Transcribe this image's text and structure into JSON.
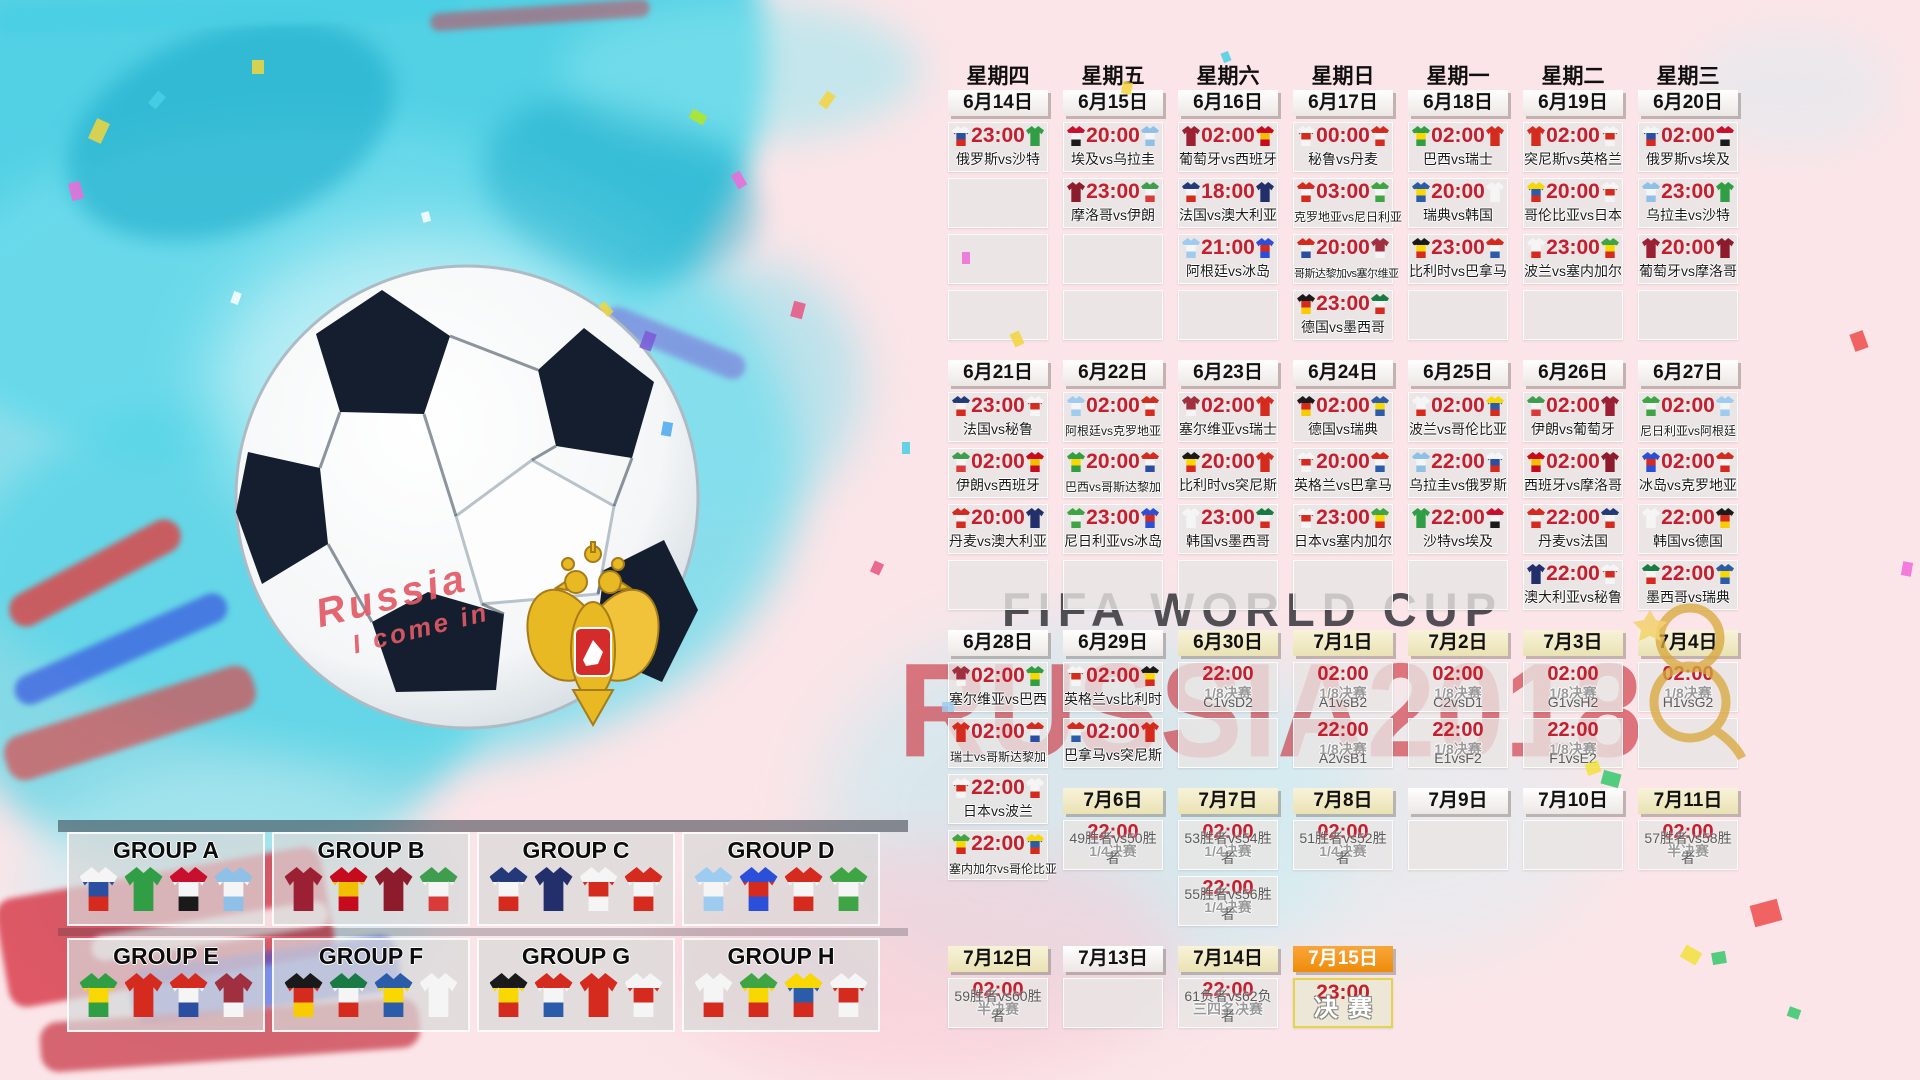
{
  "watermark": {
    "line1": "FIFA WORLD CUP",
    "line2": "RUSSIA2018"
  },
  "ball_graffiti": {
    "line1": "Russia",
    "line2": "I come in"
  },
  "colors": {
    "time_red": "#c21f2f",
    "date_highlight": "#efe6bd",
    "final_orange": "#f5920f",
    "final_cell_border": "#e3d44b",
    "background_pink": "#fbe5e8",
    "splash_cyan": "#49cfe4",
    "watermark_gray": "#34343a",
    "watermark_red": "#cb202c"
  },
  "team_colors": {
    "俄罗斯": [
      "#f5f5f5",
      "#2a4fa0",
      "#d52b1e"
    ],
    "沙特": [
      "#2f9e44",
      "#2f9e44",
      "#2f9e44"
    ],
    "埃及": [
      "#c8102e",
      "#f5f5f5",
      "#1a1a1a"
    ],
    "乌拉圭": [
      "#8fc1e8",
      "#f5f5f5",
      "#8fc1e8"
    ],
    "葡萄牙": [
      "#9c2033",
      "#9c2033",
      "#9c2033"
    ],
    "西班牙": [
      "#c60b1e",
      "#f1bf00",
      "#c60b1e"
    ],
    "摩洛哥": [
      "#8c1c2b",
      "#8c1c2b",
      "#8c1c2b"
    ],
    "伊朗": [
      "#3f9e4d",
      "#f5f5f5",
      "#d93a3a"
    ],
    "法国": [
      "#24397a",
      "#f5f5f5",
      "#d52b1e"
    ],
    "澳大利亚": [
      "#232f6b",
      "#232f6b",
      "#232f6b"
    ],
    "阿根廷": [
      "#9ecbf0",
      "#f5f5f5",
      "#9ecbf0"
    ],
    "冰岛": [
      "#2b4fd8",
      "#d52b1e",
      "#2b4fd8"
    ],
    "秘鲁": [
      "#f5f5f5",
      "#d52b1e",
      "#f5f5f5"
    ],
    "丹麦": [
      "#d52b1e",
      "#f5f5f5",
      "#d52b1e"
    ],
    "克罗地亚": [
      "#d52b1e",
      "#f5f5f5",
      "#d52b1e"
    ],
    "尼日利亚": [
      "#3fa544",
      "#f5f5f5",
      "#3fa544"
    ],
    "哥斯达黎加": [
      "#d52b1e",
      "#f5f5f5",
      "#2a4fa0"
    ],
    "塞尔维亚": [
      "#a03040",
      "#a03040",
      "#f5f5f5"
    ],
    "德国": [
      "#1a1a1a",
      "#d52b1e",
      "#f8cc00"
    ],
    "墨西哥": [
      "#1a7a44",
      "#f5f5f5",
      "#d52b1e"
    ],
    "巴西": [
      "#2f9e44",
      "#f8d800",
      "#2f9e44"
    ],
    "瑞士": [
      "#d52b1e",
      "#d52b1e",
      "#d52b1e"
    ],
    "瑞典": [
      "#2a5caa",
      "#f8d800",
      "#2a5caa"
    ],
    "韩国": [
      "#f5f5f5",
      "#f5f5f5",
      "#f5f5f5"
    ],
    "突尼斯": [
      "#d52b1e",
      "#d52b1e",
      "#d52b1e"
    ],
    "英格兰": [
      "#f5f5f5",
      "#d52b1e",
      "#f5f5f5"
    ],
    "哥伦比亚": [
      "#f8d800",
      "#2a5caa",
      "#d52b1e"
    ],
    "日本": [
      "#f5f5f5",
      "#d52b1e",
      "#f5f5f5"
    ],
    "波兰": [
      "#f5f5f5",
      "#f5f5f5",
      "#d52b1e"
    ],
    "塞内加尔": [
      "#3fa544",
      "#f8d800",
      "#d52b1e"
    ],
    "比利时": [
      "#1a1a1a",
      "#f8d800",
      "#d52b1e"
    ],
    "巴拿马": [
      "#d52b1e",
      "#f5f5f5",
      "#2a5caa"
    ]
  },
  "calendar": {
    "weekdays": [
      "星期四",
      "星期五",
      "星期六",
      "星期日",
      "星期一",
      "星期二",
      "星期三"
    ],
    "weeks": [
      {
        "columns": [
          [
            {
              "t": "date",
              "label": "6月14日",
              "style": "normal"
            },
            {
              "t": "match",
              "time": "23:00",
              "teams": "俄罗斯vs沙特"
            },
            {
              "t": "empty"
            },
            {
              "t": "empty"
            },
            {
              "t": "empty"
            }
          ],
          [
            {
              "t": "date",
              "label": "6月15日",
              "style": "normal"
            },
            {
              "t": "match",
              "time": "20:00",
              "teams": "埃及vs乌拉圭"
            },
            {
              "t": "match",
              "time": "23:00",
              "teams": "摩洛哥vs伊朗"
            },
            {
              "t": "empty"
            },
            {
              "t": "empty"
            }
          ],
          [
            {
              "t": "date",
              "label": "6月16日",
              "style": "normal"
            },
            {
              "t": "match",
              "time": "02:00",
              "teams": "葡萄牙vs西班牙"
            },
            {
              "t": "match",
              "time": "18:00",
              "teams": "法国vs澳大利亚"
            },
            {
              "t": "match",
              "time": "21:00",
              "teams": "阿根廷vs冰岛"
            },
            {
              "t": "empty"
            }
          ],
          [
            {
              "t": "date",
              "label": "6月17日",
              "style": "normal"
            },
            {
              "t": "match",
              "time": "00:00",
              "teams": "秘鲁vs丹麦"
            },
            {
              "t": "match",
              "time": "03:00",
              "teams": "克罗地亚vs尼日利亚"
            },
            {
              "t": "match",
              "time": "20:00",
              "teams": "哥斯达黎加vs塞尔维亚"
            },
            {
              "t": "match",
              "time": "23:00",
              "teams": "德国vs墨西哥"
            }
          ],
          [
            {
              "t": "date",
              "label": "6月18日",
              "style": "normal"
            },
            {
              "t": "match",
              "time": "02:00",
              "teams": "巴西vs瑞士"
            },
            {
              "t": "match",
              "time": "20:00",
              "teams": "瑞典vs韩国"
            },
            {
              "t": "match",
              "time": "23:00",
              "teams": "比利时vs巴拿马"
            },
            {
              "t": "empty"
            }
          ],
          [
            {
              "t": "date",
              "label": "6月19日",
              "style": "normal"
            },
            {
              "t": "match",
              "time": "02:00",
              "teams": "突尼斯vs英格兰"
            },
            {
              "t": "match",
              "time": "20:00",
              "teams": "哥伦比亚vs日本"
            },
            {
              "t": "match",
              "time": "23:00",
              "teams": "波兰vs塞内加尔"
            },
            {
              "t": "empty"
            }
          ],
          [
            {
              "t": "date",
              "label": "6月20日",
              "style": "normal"
            },
            {
              "t": "match",
              "time": "02:00",
              "teams": "俄罗斯vs埃及"
            },
            {
              "t": "match",
              "time": "23:00",
              "teams": "乌拉圭vs沙特"
            },
            {
              "t": "match",
              "time": "20:00",
              "teams": "葡萄牙vs摩洛哥"
            },
            {
              "t": "empty"
            }
          ]
        ]
      },
      {
        "columns": [
          [
            {
              "t": "date",
              "label": "6月21日",
              "style": "normal"
            },
            {
              "t": "match",
              "time": "23:00",
              "teams": "法国vs秘鲁"
            },
            {
              "t": "match",
              "time": "02:00",
              "teams": "伊朗vs西班牙"
            },
            {
              "t": "match",
              "time": "20:00",
              "teams": "丹麦vs澳大利亚"
            },
            {
              "t": "empty"
            }
          ],
          [
            {
              "t": "date",
              "label": "6月22日",
              "style": "normal"
            },
            {
              "t": "match",
              "time": "02:00",
              "teams": "阿根廷vs克罗地亚"
            },
            {
              "t": "match",
              "time": "20:00",
              "teams": "巴西vs哥斯达黎加"
            },
            {
              "t": "match",
              "time": "23:00",
              "teams": "尼日利亚vs冰岛"
            },
            {
              "t": "empty"
            }
          ],
          [
            {
              "t": "date",
              "label": "6月23日",
              "style": "normal"
            },
            {
              "t": "match",
              "time": "02:00",
              "teams": "塞尔维亚vs瑞士"
            },
            {
              "t": "match",
              "time": "20:00",
              "teams": "比利时vs突尼斯"
            },
            {
              "t": "match",
              "time": "23:00",
              "teams": "韩国vs墨西哥"
            },
            {
              "t": "empty"
            }
          ],
          [
            {
              "t": "date",
              "label": "6月24日",
              "style": "normal"
            },
            {
              "t": "match",
              "time": "02:00",
              "teams": "德国vs瑞典"
            },
            {
              "t": "match",
              "time": "20:00",
              "teams": "英格兰vs巴拿马"
            },
            {
              "t": "match",
              "time": "23:00",
              "teams": "日本vs塞内加尔"
            },
            {
              "t": "empty"
            }
          ],
          [
            {
              "t": "date",
              "label": "6月25日",
              "style": "normal"
            },
            {
              "t": "match",
              "time": "02:00",
              "teams": "波兰vs哥伦比亚"
            },
            {
              "t": "match",
              "time": "22:00",
              "teams": "乌拉圭vs俄罗斯"
            },
            {
              "t": "match",
              "time": "22:00",
              "teams": "沙特vs埃及"
            },
            {
              "t": "empty"
            }
          ],
          [
            {
              "t": "date",
              "label": "6月26日",
              "style": "normal"
            },
            {
              "t": "match",
              "time": "02:00",
              "teams": "伊朗vs葡萄牙"
            },
            {
              "t": "match",
              "time": "02:00",
              "teams": "西班牙vs摩洛哥"
            },
            {
              "t": "match",
              "time": "22:00",
              "teams": "丹麦vs法国"
            },
            {
              "t": "match",
              "time": "22:00",
              "teams": "澳大利亚vs秘鲁"
            }
          ],
          [
            {
              "t": "date",
              "label": "6月27日",
              "style": "normal"
            },
            {
              "t": "match",
              "time": "02:00",
              "teams": "尼日利亚vs阿根廷"
            },
            {
              "t": "match",
              "time": "02:00",
              "teams": "冰岛vs克罗地亚"
            },
            {
              "t": "match",
              "time": "22:00",
              "teams": "韩国vs德国"
            },
            {
              "t": "match",
              "time": "22:00",
              "teams": "墨西哥vs瑞典"
            }
          ]
        ]
      },
      {
        "columns": [
          [
            {
              "t": "date",
              "label": "6月28日",
              "style": "normal"
            },
            {
              "t": "match",
              "time": "02:00",
              "teams": "塞尔维亚vs巴西"
            },
            {
              "t": "match",
              "time": "02:00",
              "teams": "瑞士vs哥斯达黎加"
            },
            {
              "t": "match",
              "time": "22:00",
              "teams": "日本vs波兰"
            },
            {
              "t": "match",
              "time": "22:00",
              "teams": "塞内加尔vs哥伦比亚"
            }
          ],
          [
            {
              "t": "date",
              "label": "6月29日",
              "style": "normal"
            },
            {
              "t": "match",
              "time": "02:00",
              "teams": "英格兰vs比利时"
            },
            {
              "t": "match",
              "time": "02:00",
              "teams": "巴拿马vs突尼斯"
            }
          ],
          [
            {
              "t": "date",
              "label": "6月30日",
              "style": "hl"
            },
            {
              "t": "ko",
              "time": "22:00",
              "stage": "1/8决赛",
              "code": "C1vsD2"
            },
            {
              "t": "empty"
            }
          ],
          [
            {
              "t": "date",
              "label": "7月1日",
              "style": "hl"
            },
            {
              "t": "ko",
              "time": "02:00",
              "stage": "1/8决赛",
              "code": "A1vsB2"
            },
            {
              "t": "ko",
              "time": "22:00",
              "stage": "1/8决赛",
              "code": "A2vsB1"
            }
          ],
          [
            {
              "t": "date",
              "label": "7月2日",
              "style": "hl"
            },
            {
              "t": "ko",
              "time": "02:00",
              "stage": "1/8决赛",
              "code": "C2vsD1"
            },
            {
              "t": "ko",
              "time": "22:00",
              "stage": "1/8决赛",
              "code": "E1vsF2"
            }
          ],
          [
            {
              "t": "date",
              "label": "7月3日",
              "style": "hl"
            },
            {
              "t": "ko",
              "time": "02:00",
              "stage": "1/8决赛",
              "code": "G1vsH2"
            },
            {
              "t": "ko",
              "time": "22:00",
              "stage": "1/8决赛",
              "code": "F1vsE2"
            }
          ],
          [
            {
              "t": "date",
              "label": "7月4日",
              "style": "hl"
            },
            {
              "t": "ko",
              "time": "02:00",
              "stage": "1/8决赛",
              "code": "H1vsG2"
            },
            {
              "t": "empty"
            }
          ]
        ]
      },
      {
        "columns": [
          [],
          [
            {
              "t": "date",
              "label": "7月6日",
              "style": "hl"
            },
            {
              "t": "ko",
              "time": "22:00",
              "stage": "1/4决赛",
              "code": "49胜者vs50胜者"
            }
          ],
          [
            {
              "t": "date",
              "label": "7月7日",
              "style": "hl"
            },
            {
              "t": "ko",
              "time": "02:00",
              "stage": "1/4决赛",
              "code": "53胜者vs54胜者"
            },
            {
              "t": "ko",
              "time": "22:00",
              "stage": "1/4决赛",
              "code": "55胜者vs56胜者"
            }
          ],
          [
            {
              "t": "date",
              "label": "7月8日",
              "style": "hl"
            },
            {
              "t": "ko",
              "time": "02:00",
              "stage": "1/4决赛",
              "code": "51胜者vs52胜者"
            }
          ],
          [
            {
              "t": "date",
              "label": "7月9日",
              "style": "normal"
            },
            {
              "t": "empty"
            }
          ],
          [
            {
              "t": "date",
              "label": "7月10日",
              "style": "normal"
            },
            {
              "t": "empty"
            }
          ],
          [
            {
              "t": "date",
              "label": "7月11日",
              "style": "hl"
            },
            {
              "t": "ko",
              "time": "02:00",
              "stage": "半决赛",
              "code": "57胜者vs58胜者"
            }
          ]
        ]
      },
      {
        "columns": [
          [
            {
              "t": "date",
              "label": "7月12日",
              "style": "hl"
            },
            {
              "t": "ko",
              "time": "02:00",
              "stage": "半决赛",
              "code": "59胜者vs60胜者"
            }
          ],
          [
            {
              "t": "date",
              "label": "7月13日",
              "style": "normal"
            },
            {
              "t": "empty"
            }
          ],
          [
            {
              "t": "date",
              "label": "7月14日",
              "style": "hl"
            },
            {
              "t": "ko",
              "time": "22:00",
              "stage": "三四名决赛",
              "code": "61负者vs62负者"
            }
          ],
          [
            {
              "t": "date",
              "label": "7月15日",
              "style": "final"
            },
            {
              "t": "final",
              "time": "23:00",
              "label": "决赛"
            }
          ],
          [],
          [],
          []
        ]
      }
    ]
  },
  "groups": [
    {
      "name": "GROUP A",
      "teams": [
        "俄罗斯",
        "沙特",
        "埃及",
        "乌拉圭"
      ]
    },
    {
      "name": "GROUP B",
      "teams": [
        "葡萄牙",
        "西班牙",
        "摩洛哥",
        "伊朗"
      ]
    },
    {
      "name": "GROUP C",
      "teams": [
        "法国",
        "澳大利亚",
        "秘鲁",
        "丹麦"
      ]
    },
    {
      "name": "GROUP D",
      "teams": [
        "阿根廷",
        "冰岛",
        "克罗地亚",
        "尼日利亚"
      ]
    },
    {
      "name": "GROUP E",
      "teams": [
        "巴西",
        "瑞士",
        "哥斯达黎加",
        "塞尔维亚"
      ]
    },
    {
      "name": "GROUP F",
      "teams": [
        "德国",
        "墨西哥",
        "瑞典",
        "韩国"
      ]
    },
    {
      "name": "GROUP G",
      "teams": [
        "比利时",
        "巴拿马",
        "突尼斯",
        "英格兰"
      ]
    },
    {
      "name": "GROUP H",
      "teams": [
        "波兰",
        "塞内加尔",
        "哥伦比亚",
        "日本"
      ]
    }
  ]
}
